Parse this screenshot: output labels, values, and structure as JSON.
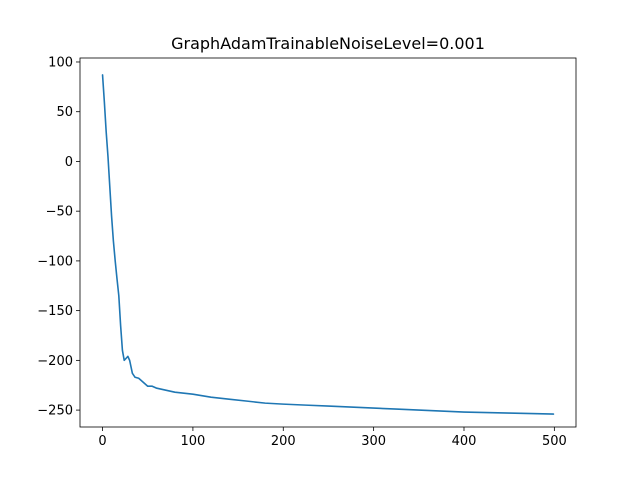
{
  "chart_data": {
    "type": "line",
    "title": "GraphAdamTrainableNoiseLevel=0.001",
    "xlabel": "",
    "ylabel": "",
    "xlim": [
      -24.95,
      523.95
    ],
    "ylim": [
      -267.0,
      104.0
    ],
    "grid": false,
    "x_ticks": [
      0,
      100,
      200,
      300,
      400,
      500
    ],
    "x_tick_labels": [
      "0",
      "100",
      "200",
      "300",
      "400",
      "500"
    ],
    "y_ticks": [
      100,
      50,
      0,
      -50,
      -100,
      -150,
      -200,
      -250
    ],
    "y_tick_labels": [
      "100",
      "50",
      "0",
      "−50",
      "−100",
      "−150",
      "−200",
      "−250"
    ],
    "series": [
      {
        "color": "#1f77b4",
        "x": [
          0,
          2,
          4,
          6,
          8,
          10,
          12,
          14,
          16,
          18,
          20,
          22,
          24,
          26,
          28,
          30,
          33,
          36,
          40,
          45,
          50,
          55,
          60,
          70,
          80,
          90,
          100,
          120,
          140,
          160,
          180,
          200,
          225,
          250,
          275,
          300,
          325,
          350,
          375,
          400,
          425,
          450,
          475,
          499
        ],
        "y": [
          87,
          60,
          30,
          5,
          -25,
          -55,
          -80,
          -100,
          -118,
          -135,
          -165,
          -190,
          -200,
          -198,
          -196,
          -200,
          -213,
          -217,
          -218,
          -222,
          -226,
          -226,
          -228,
          -230,
          -232,
          -233,
          -234,
          -237,
          -239,
          -241,
          -243,
          -244,
          -245,
          -246,
          -247,
          -248,
          -249,
          -250,
          -251,
          -252,
          -252.5,
          -253,
          -253.5,
          -254
        ]
      }
    ]
  }
}
